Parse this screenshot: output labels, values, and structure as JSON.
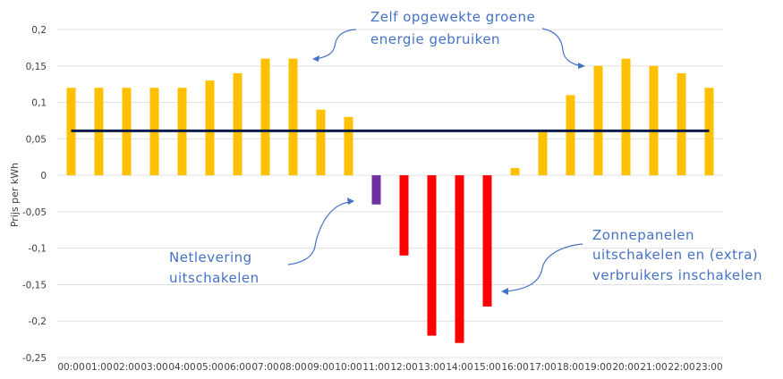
{
  "chart_data": {
    "type": "bar",
    "title": "",
    "xlabel": "",
    "ylabel": "Prijs per kWh",
    "ylim": [
      -0.25,
      0.2
    ],
    "yticks": [
      0.2,
      0.15,
      0.1,
      0.05,
      0,
      -0.05,
      -0.1,
      -0.15,
      -0.2,
      -0.25
    ],
    "ytick_labels": [
      "0,2",
      "0,15",
      "0,1",
      "0,05",
      "0",
      "-0,05",
      "-0,1",
      "-0,15",
      "-0,2",
      "-0,25"
    ],
    "grid": true,
    "legend": null,
    "categories": [
      "00:00",
      "01:00",
      "02:00",
      "03:00",
      "04:00",
      "05:00",
      "06:00",
      "07:00",
      "08:00",
      "09:00",
      "10:00",
      "11:00",
      "12:00",
      "13:00",
      "14:00",
      "15:00",
      "16:00",
      "17:00",
      "18:00",
      "19:00",
      "20:00",
      "21:00",
      "22:00",
      "23:00"
    ],
    "series": [
      {
        "name": "Prijs per kWh",
        "values": [
          0.12,
          0.12,
          0.12,
          0.12,
          0.12,
          0.13,
          0.14,
          0.16,
          0.16,
          0.09,
          0.08,
          -0.04,
          -0.11,
          -0.22,
          -0.23,
          -0.18,
          0.01,
          0.06,
          0.11,
          0.15,
          0.16,
          0.15,
          0.14,
          0.12
        ],
        "colors": [
          "#ffc000",
          "#ffc000",
          "#ffc000",
          "#ffc000",
          "#ffc000",
          "#ffc000",
          "#ffc000",
          "#ffc000",
          "#ffc000",
          "#ffc000",
          "#ffc000",
          "#7030a0",
          "#ff0000",
          "#ff0000",
          "#ff0000",
          "#ff0000",
          "#ffc000",
          "#ffc000",
          "#ffc000",
          "#ffc000",
          "#ffc000",
          "#ffc000",
          "#ffc000",
          "#ffc000"
        ]
      },
      {
        "name": "Referentielijn",
        "type": "line",
        "value": 0.061,
        "color": "#0d1b4c"
      }
    ],
    "annotations": [
      {
        "id": "green-energy",
        "lines": [
          "Zelf opgewekte groene",
          "energie gebruiken"
        ]
      },
      {
        "id": "grid-delivery",
        "lines": [
          "Netlevering",
          "uitschakelen"
        ]
      },
      {
        "id": "solar-off",
        "lines": [
          "Zonnepanelen",
          "uitschakelen en (extra)",
          "verbruikers inschakelen"
        ]
      }
    ]
  },
  "colors": {
    "positive": "#ffc000",
    "negative": "#ff0000",
    "slight_negative": "#7030a0",
    "line": "#0d1b4c",
    "grid": "#e0e0e0",
    "annotation": "#4472c4",
    "text": "#404040"
  }
}
